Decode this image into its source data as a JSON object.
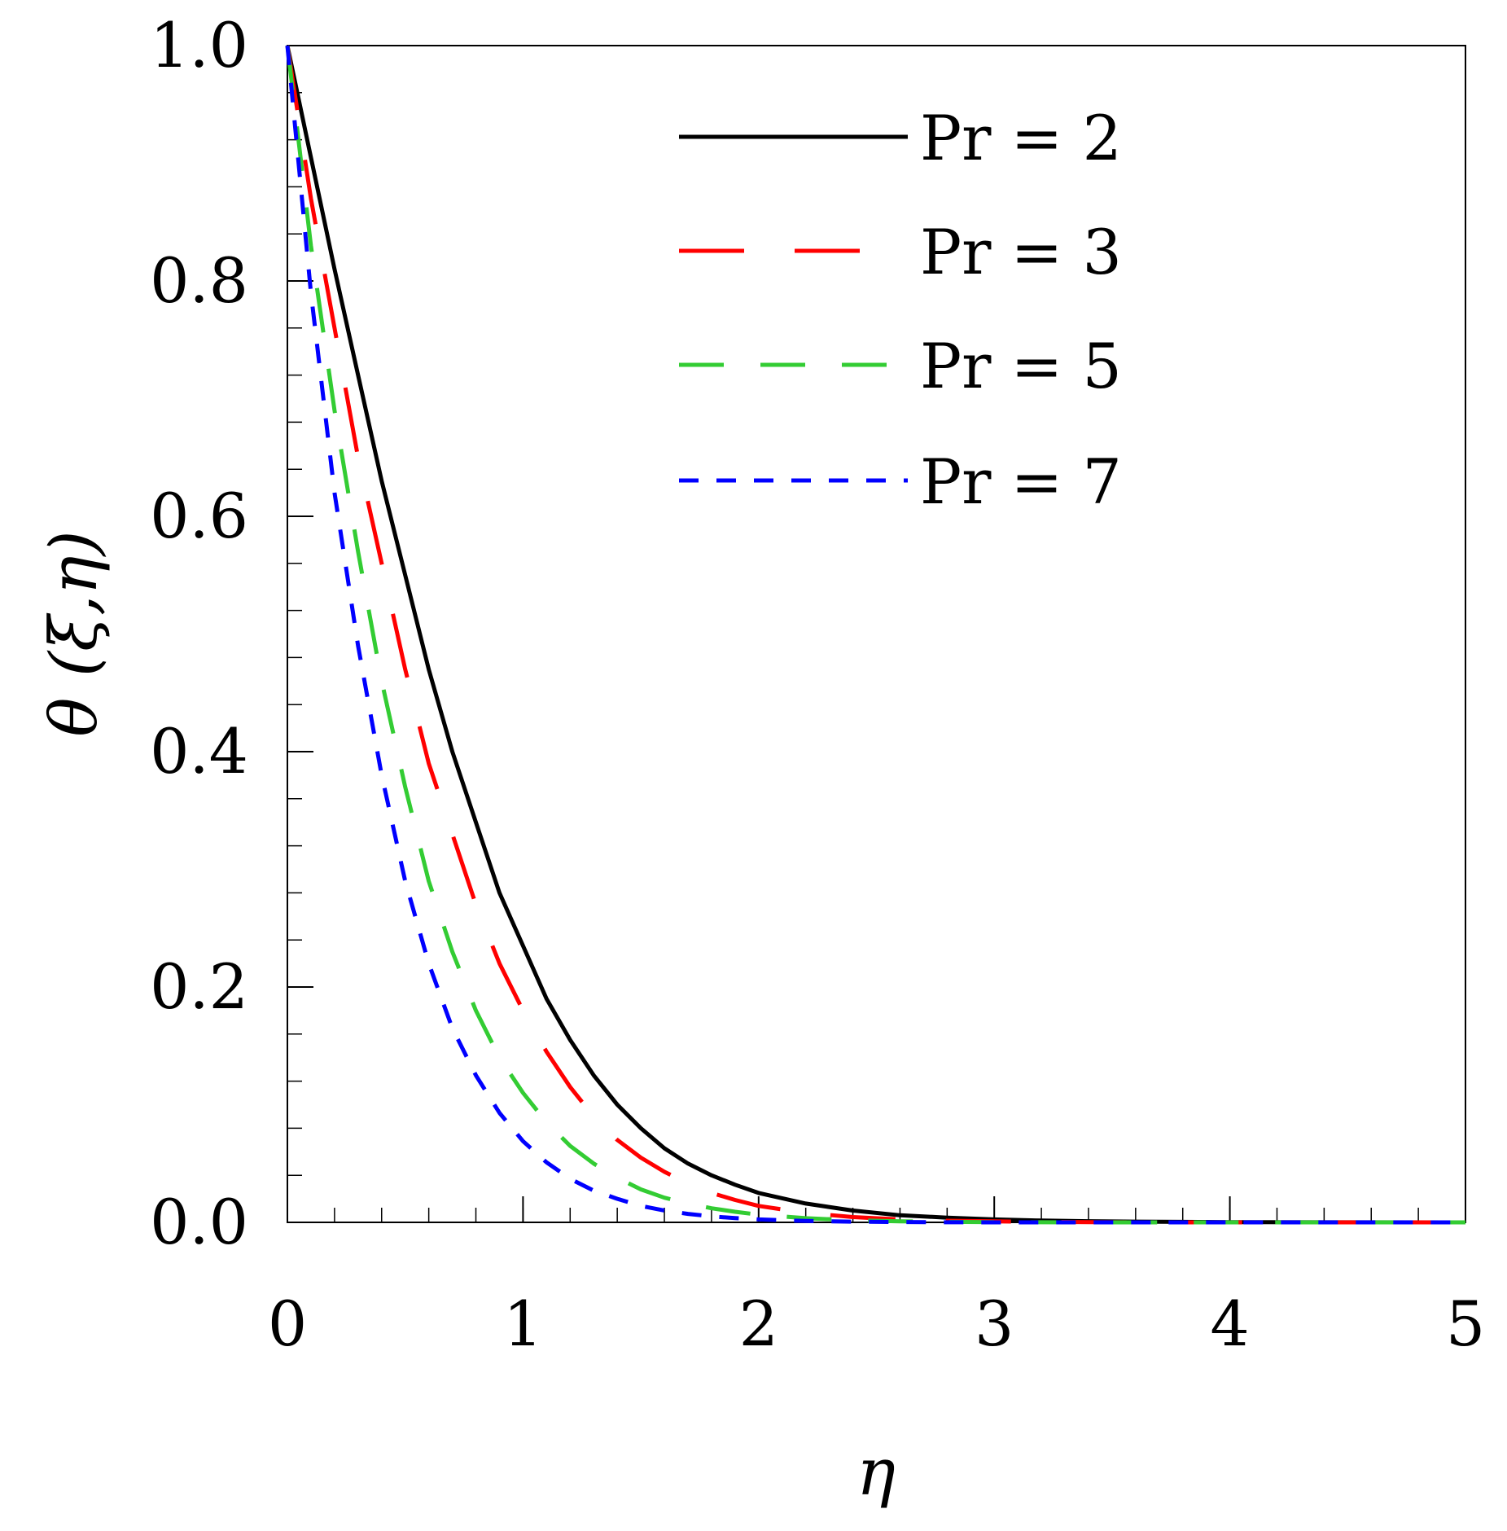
{
  "chart_data": {
    "type": "line",
    "title": "",
    "xlabel": "η",
    "ylabel": "θ (ξ,η)",
    "xlim": [
      0,
      5
    ],
    "ylim": [
      0,
      1
    ],
    "xticks": [
      0,
      1,
      2,
      3,
      4,
      5
    ],
    "yticks": [
      0,
      0.2,
      0.4,
      0.6,
      0.8,
      1
    ],
    "xtick_labels": [
      "0",
      "1",
      "2",
      "3",
      "4",
      "5"
    ],
    "ytick_labels": [
      "0.0",
      "0.2",
      "0.4",
      "0.6",
      "0.8",
      "1.0"
    ],
    "grid": false,
    "legend_position": "top-right",
    "x": [
      0,
      0.1,
      0.2,
      0.3,
      0.4,
      0.5,
      0.6,
      0.7,
      0.8,
      0.9,
      1.0,
      1.1,
      1.2,
      1.3,
      1.4,
      1.5,
      1.6,
      1.7,
      1.8,
      1.9,
      2.0,
      2.2,
      2.4,
      2.6,
      2.8,
      3.0,
      3.2,
      3.4,
      3.6,
      3.8,
      4.0,
      4.5,
      5.0
    ],
    "series": [
      {
        "name": "Pr = 2",
        "color": "#000000",
        "dash": "solid",
        "values": [
          1.0,
          0.905,
          0.81,
          0.72,
          0.63,
          0.55,
          0.47,
          0.4,
          0.34,
          0.28,
          0.235,
          0.19,
          0.155,
          0.125,
          0.1,
          0.08,
          0.063,
          0.05,
          0.04,
          0.032,
          0.025,
          0.016,
          0.01,
          0.006,
          0.004,
          0.0025,
          0.0015,
          0.001,
          0.0006,
          0.0004,
          0.0002,
          0.0001,
          0.0
        ]
      },
      {
        "name": "Pr = 3",
        "color": "#ff0000",
        "dash": "long-dash",
        "values": [
          1.0,
          0.87,
          0.76,
          0.65,
          0.56,
          0.47,
          0.39,
          0.33,
          0.27,
          0.22,
          0.18,
          0.145,
          0.115,
          0.09,
          0.07,
          0.055,
          0.043,
          0.033,
          0.025,
          0.019,
          0.014,
          0.008,
          0.0045,
          0.0025,
          0.0014,
          0.0008,
          0.0004,
          0.0002,
          0.0001,
          0.0,
          0.0,
          0.0,
          0.0
        ]
      },
      {
        "name": "Pr = 5",
        "color": "#33cc33",
        "dash": "medium-dash",
        "values": [
          1.0,
          0.83,
          0.69,
          0.57,
          0.46,
          0.37,
          0.29,
          0.23,
          0.18,
          0.14,
          0.11,
          0.085,
          0.065,
          0.05,
          0.038,
          0.028,
          0.021,
          0.016,
          0.012,
          0.009,
          0.0065,
          0.0035,
          0.0018,
          0.0009,
          0.0005,
          0.0002,
          0.0001,
          0.0,
          0.0,
          0.0,
          0.0,
          0.0,
          0.0
        ]
      },
      {
        "name": "Pr = 7",
        "color": "#0000ff",
        "dash": "short-dash",
        "values": [
          1.0,
          0.79,
          0.62,
          0.49,
          0.38,
          0.29,
          0.22,
          0.165,
          0.125,
          0.093,
          0.069,
          0.051,
          0.037,
          0.027,
          0.02,
          0.014,
          0.01,
          0.0072,
          0.0051,
          0.0036,
          0.0025,
          0.0012,
          0.0006,
          0.0003,
          0.0001,
          0.0,
          0.0,
          0.0,
          0.0,
          0.0,
          0.0,
          0.0,
          0.0
        ]
      }
    ]
  }
}
